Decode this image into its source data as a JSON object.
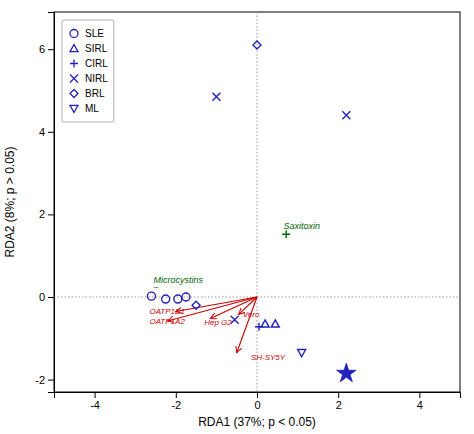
{
  "chart_data": {
    "type": "scatter",
    "xlabel": "RDA1 (37%; p < 0.05)",
    "ylabel": "RDA2 (8%; p > 0.05)",
    "xlim": [
      -5,
      5
    ],
    "ylim": [
      -2.3,
      6.9
    ],
    "xticks": [
      -4,
      -2,
      0,
      2,
      4
    ],
    "yticks": [
      -2,
      0,
      2,
      4,
      6
    ],
    "grid": false,
    "legend": "upper left",
    "series": [
      {
        "name": "SLE",
        "color": "#2222bb",
        "marker": "circle",
        "x": [
          -2.6,
          -2.25,
          -1.95,
          -1.75
        ],
        "values": [
          0.02,
          -0.05,
          -0.05,
          0.0
        ]
      },
      {
        "name": "SIRL",
        "color": "#2222bb",
        "marker": "triangle-up",
        "x": [
          0.2,
          0.45
        ],
        "values": [
          -0.65,
          -0.65
        ]
      },
      {
        "name": "CIRL",
        "color": "#2222bb",
        "marker": "plus",
        "x": [
          0.05
        ],
        "values": [
          -0.72
        ]
      },
      {
        "name": "NIRL",
        "color": "#2222bb",
        "marker": "x",
        "x": [
          -0.55,
          -1.0,
          2.2
        ],
        "values": [
          -0.55,
          4.85,
          4.4
        ]
      },
      {
        "name": "BRL",
        "color": "#2222bb",
        "marker": "diamond",
        "x": [
          -1.5,
          0.0
        ],
        "values": [
          -0.2,
          6.1
        ]
      },
      {
        "name": "ML",
        "color": "#2222bb",
        "marker": "triangle-down",
        "x": [
          1.1
        ],
        "values": [
          -1.35
        ]
      },
      {
        "color": "#2222bb",
        "marker": "star",
        "x": [
          2.2
        ],
        "values": [
          -1.85
        ]
      },
      {
        "color": "#006600",
        "marker": "plus",
        "x": [
          0.72
        ],
        "values": [
          1.52
        ]
      }
    ],
    "reference_lines": {
      "x": [
        0
      ],
      "y": [
        0
      ]
    },
    "origin": [
      0,
      0
    ],
    "arrows": [
      {
        "label": "OATP1B1",
        "x": -2.0,
        "y": -0.35,
        "label_x": -2.65,
        "label_y": -0.42,
        "color": "#cc0000"
      },
      {
        "label": "OATP1A2",
        "x": -2.2,
        "y": -0.58,
        "label_x": -2.65,
        "label_y": -0.65,
        "color": "#cc0000"
      },
      {
        "label": "Hep G2",
        "x": -1.15,
        "y": -0.52,
        "label_x": -1.3,
        "label_y": -0.68,
        "color": "#cc0000"
      },
      {
        "label": "Vero",
        "x": -0.45,
        "y": -0.42,
        "label_x": -0.35,
        "label_y": -0.48,
        "color": "#cc0000"
      },
      {
        "label": "SH-SY5Y",
        "x": -0.5,
        "y": -1.35,
        "label_x": -0.15,
        "label_y": -1.52,
        "color": "#cc0000"
      }
    ],
    "annotations": [
      {
        "text": "Saxitoxin",
        "x": 0.65,
        "y": 1.65,
        "color": "#006600"
      },
      {
        "text": "Microcystins",
        "x": -2.55,
        "y": 0.35,
        "color": "#006600"
      },
      {
        "text": "–",
        "x": -2.55,
        "y": 0.18,
        "color": "#006600"
      }
    ]
  }
}
